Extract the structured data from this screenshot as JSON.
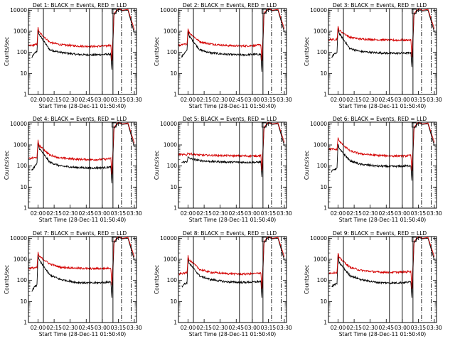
{
  "figure": {
    "start_label": "Start Time (28-Dec-11 01:50:40)",
    "y_label": "Counts/sec",
    "x_ticks": [
      "02:00",
      "02:15",
      "02:30",
      "02:45",
      "03:00",
      "03:15",
      "03:30"
    ],
    "y_ticks": [
      "1",
      "10",
      "100",
      "1000",
      "10000"
    ]
  },
  "chart_data": [
    {
      "type": "line",
      "title": "Det 1: BLACK = Events, RED = LLD",
      "xlabel": "Start Time (28-Dec-11 01:50:40)",
      "ylabel": "Counts/sec",
      "x_unit": "minutes after 01:50:40",
      "xlim": [
        0,
        101
      ],
      "ylim": [
        1,
        12000
      ],
      "y_scale": "log",
      "vlines": [
        14,
        57,
        69,
        79
      ],
      "dashed_vlines": [
        87,
        96
      ],
      "series": [
        {
          "name": "Events",
          "color": "#000000",
          "x": [
            3,
            5,
            8,
            9,
            10,
            20,
            30,
            45,
            60,
            72,
            77,
            78,
            80,
            84,
            88,
            93,
            99
          ],
          "values": [
            55,
            80,
            115,
            1300,
            700,
            130,
            100,
            80,
            75,
            80,
            82,
            15,
            6000,
            11000,
            9500,
            10000,
            800
          ]
        },
        {
          "name": "LLD",
          "color": "#d40000",
          "x": [
            0,
            8,
            9,
            10,
            20,
            30,
            45,
            60,
            72,
            77,
            78,
            80,
            84,
            88,
            93,
            99
          ],
          "values": [
            200,
            240,
            1500,
            900,
            300,
            230,
            200,
            190,
            200,
            220,
            40,
            7000,
            12000,
            10000,
            11000,
            1200
          ]
        }
      ]
    },
    {
      "type": "line",
      "title": "Det 2: BLACK = Events, RED = LLD",
      "xlabel": "Start Time (28-Dec-11 01:50:40)",
      "ylabel": "Counts/sec",
      "x_unit": "minutes after 01:50:40",
      "xlim": [
        0,
        101
      ],
      "ylim": [
        1,
        12000
      ],
      "y_scale": "log",
      "vlines": [
        14,
        57,
        69,
        79
      ],
      "dashed_vlines": [
        87,
        96
      ],
      "series": [
        {
          "name": "Events",
          "color": "#000000",
          "x": [
            3,
            5,
            8,
            9,
            10,
            20,
            30,
            45,
            60,
            72,
            77,
            78,
            80,
            84,
            88,
            93,
            99
          ],
          "values": [
            60,
            85,
            120,
            1100,
            600,
            130,
            95,
            80,
            75,
            80,
            80,
            12,
            6500,
            11000,
            9500,
            10000,
            900
          ]
        },
        {
          "name": "LLD",
          "color": "#d40000",
          "x": [
            0,
            8,
            9,
            10,
            20,
            30,
            45,
            60,
            72,
            77,
            78,
            80,
            84,
            88,
            93,
            99
          ],
          "values": [
            210,
            250,
            1400,
            850,
            320,
            250,
            210,
            200,
            210,
            230,
            40,
            7500,
            12000,
            10000,
            11000,
            1300
          ]
        }
      ]
    },
    {
      "type": "line",
      "title": "Det 3: BLACK = Events, RED = LLD",
      "xlabel": "Start Time (28-Dec-11 01:50:40)",
      "ylabel": "Counts/sec",
      "x_unit": "minutes after 01:50:40",
      "xlim": [
        0,
        101
      ],
      "ylim": [
        1,
        12000
      ],
      "y_scale": "log",
      "vlines": [
        14,
        57,
        69,
        79
      ],
      "dashed_vlines": [
        87,
        96
      ],
      "series": [
        {
          "name": "Events",
          "color": "#000000",
          "x": [
            3,
            5,
            8,
            9,
            10,
            20,
            30,
            45,
            60,
            72,
            77,
            78,
            80,
            84,
            88,
            93,
            99
          ],
          "values": [
            60,
            80,
            95,
            1500,
            800,
            150,
            110,
            95,
            90,
            92,
            95,
            20,
            6000,
            10500,
            9000,
            10000,
            900
          ]
        },
        {
          "name": "LLD",
          "color": "#d40000",
          "x": [
            0,
            8,
            9,
            10,
            20,
            30,
            45,
            60,
            72,
            77,
            78,
            80,
            84,
            88,
            93,
            99
          ],
          "values": [
            400,
            420,
            1600,
            1100,
            520,
            430,
            400,
            380,
            380,
            390,
            60,
            7000,
            11500,
            10000,
            11000,
            1300
          ]
        }
      ]
    },
    {
      "type": "line",
      "title": "Det 4: BLACK = Events, RED = LLD",
      "xlabel": "Start Time (28-Dec-11 01:50:40)",
      "ylabel": "Counts/sec",
      "x_unit": "minutes after 01:50:40",
      "xlim": [
        0,
        101
      ],
      "ylim": [
        1,
        12000
      ],
      "y_scale": "log",
      "vlines": [
        14,
        57,
        69,
        79
      ],
      "dashed_vlines": [
        87,
        96
      ],
      "series": [
        {
          "name": "Events",
          "color": "#000000",
          "x": [
            3,
            5,
            8,
            9,
            10,
            20,
            30,
            45,
            60,
            72,
            77,
            78,
            80,
            84,
            88,
            93,
            99
          ],
          "values": [
            60,
            85,
            130,
            1400,
            700,
            150,
            100,
            85,
            80,
            85,
            90,
            15,
            6000,
            11000,
            9500,
            10000,
            800
          ]
        },
        {
          "name": "LLD",
          "color": "#d40000",
          "x": [
            0,
            8,
            9,
            10,
            20,
            30,
            45,
            60,
            72,
            77,
            78,
            80,
            84,
            88,
            93,
            99
          ],
          "values": [
            220,
            260,
            1600,
            950,
            330,
            240,
            210,
            200,
            210,
            230,
            40,
            7000,
            12000,
            10000,
            11000,
            1200
          ]
        }
      ]
    },
    {
      "type": "line",
      "title": "Det 5: BLACK = Events, RED = LLD",
      "xlabel": "Start Time (28-Dec-11 01:50:40)",
      "ylabel": "Counts/sec",
      "x_unit": "minutes after 01:50:40",
      "xlim": [
        0,
        101
      ],
      "ylim": [
        1,
        12000
      ],
      "y_scale": "log",
      "vlines": [
        14,
        57,
        69,
        79
      ],
      "dashed_vlines": [
        87,
        96
      ],
      "series": [
        {
          "name": "Events",
          "color": "#000000",
          "x": [
            3,
            8,
            9,
            10,
            20,
            30,
            45,
            60,
            72,
            77,
            78,
            80,
            84,
            88,
            93,
            99
          ],
          "values": [
            150,
            160,
            260,
            230,
            180,
            165,
            155,
            150,
            150,
            155,
            30,
            6000,
            11000,
            9500,
            10000,
            900
          ]
        },
        {
          "name": "LLD",
          "color": "#d40000",
          "x": [
            0,
            8,
            9,
            10,
            20,
            30,
            45,
            60,
            72,
            77,
            78,
            80,
            84,
            88,
            93,
            99
          ],
          "values": [
            350,
            340,
            420,
            380,
            330,
            320,
            310,
            300,
            300,
            310,
            60,
            7000,
            12000,
            10000,
            11000,
            1300
          ]
        }
      ]
    },
    {
      "type": "line",
      "title": "Det 6: BLACK = Events, RED = LLD",
      "xlabel": "Start Time (28-Dec-11 01:50:40)",
      "ylabel": "Counts/sec",
      "x_unit": "minutes after 01:50:40",
      "xlim": [
        0,
        101
      ],
      "ylim": [
        1,
        12000
      ],
      "y_scale": "log",
      "vlines": [
        14,
        57,
        69,
        79
      ],
      "dashed_vlines": [
        87,
        96
      ],
      "series": [
        {
          "name": "Events",
          "color": "#000000",
          "x": [
            3,
            5,
            8,
            9,
            10,
            20,
            30,
            45,
            60,
            72,
            77,
            78,
            80,
            84,
            88,
            93,
            99
          ],
          "values": [
            55,
            70,
            75,
            1200,
            650,
            180,
            120,
            100,
            95,
            100,
            105,
            20,
            6000,
            11000,
            9500,
            10000,
            900
          ]
        },
        {
          "name": "LLD",
          "color": "#d40000",
          "x": [
            0,
            8,
            9,
            10,
            20,
            30,
            45,
            60,
            72,
            77,
            78,
            80,
            84,
            88,
            93,
            99
          ],
          "values": [
            650,
            600,
            2300,
            1500,
            520,
            380,
            320,
            300,
            300,
            320,
            60,
            7000,
            12000,
            10000,
            11000,
            1300
          ]
        }
      ]
    },
    {
      "type": "line",
      "title": "Det 7: BLACK = Events, RED = LLD",
      "xlabel": "Start Time (28-Dec-11 01:50:40)",
      "ylabel": "Counts/sec",
      "x_unit": "minutes after 01:50:40",
      "xlim": [
        0,
        101
      ],
      "ylim": [
        1,
        12000
      ],
      "y_scale": "log",
      "vlines": [
        14,
        57,
        69,
        79
      ],
      "dashed_vlines": [
        87,
        96
      ],
      "series": [
        {
          "name": "Events",
          "color": "#000000",
          "x": [
            3,
            5,
            8,
            9,
            10,
            20,
            30,
            45,
            60,
            72,
            77,
            78,
            80,
            84,
            88,
            93,
            99
          ],
          "values": [
            30,
            45,
            60,
            1800,
            900,
            180,
            110,
            80,
            75,
            80,
            85,
            15,
            6000,
            11000,
            9500,
            10000,
            900
          ]
        },
        {
          "name": "LLD",
          "color": "#d40000",
          "x": [
            0,
            8,
            9,
            10,
            20,
            30,
            45,
            60,
            72,
            77,
            78,
            80,
            84,
            88,
            93,
            99
          ],
          "values": [
            380,
            400,
            2100,
            1400,
            600,
            420,
            380,
            360,
            370,
            390,
            60,
            7000,
            12000,
            10000,
            11000,
            1300
          ]
        }
      ]
    },
    {
      "type": "line",
      "title": "Det 8: BLACK = Events, RED = LLD",
      "xlabel": "Start Time (28-Dec-11 01:50:40)",
      "ylabel": "Counts/sec",
      "x_unit": "minutes after 01:50:40",
      "xlim": [
        0,
        101
      ],
      "ylim": [
        1,
        12000
      ],
      "y_scale": "log",
      "vlines": [
        14,
        57,
        69,
        79
      ],
      "dashed_vlines": [
        87,
        96
      ],
      "series": [
        {
          "name": "Events",
          "color": "#000000",
          "x": [
            3,
            5,
            8,
            9,
            10,
            20,
            30,
            45,
            60,
            72,
            77,
            78,
            80,
            84,
            88,
            93,
            99
          ],
          "values": [
            50,
            65,
            75,
            1300,
            650,
            160,
            110,
            85,
            80,
            85,
            90,
            15,
            6000,
            11000,
            9500,
            10000,
            900
          ]
        },
        {
          "name": "LLD",
          "color": "#d40000",
          "x": [
            0,
            8,
            9,
            10,
            20,
            30,
            45,
            60,
            72,
            77,
            78,
            80,
            84,
            88,
            93,
            99
          ],
          "values": [
            200,
            230,
            1500,
            950,
            330,
            240,
            210,
            200,
            210,
            230,
            40,
            7000,
            12000,
            10000,
            11000,
            1300
          ]
        }
      ]
    },
    {
      "type": "line",
      "title": "Det 9: BLACK = Events, RED = LLD",
      "xlabel": "Start Time (28-Dec-11 01:50:40)",
      "ylabel": "Counts/sec",
      "x_unit": "minutes after 01:50:40",
      "xlim": [
        0,
        101
      ],
      "ylim": [
        1,
        12000
      ],
      "y_scale": "log",
      "vlines": [
        14,
        57,
        69,
        79
      ],
      "dashed_vlines": [
        87,
        96
      ],
      "series": [
        {
          "name": "Events",
          "color": "#000000",
          "x": [
            3,
            5,
            8,
            9,
            10,
            20,
            30,
            45,
            60,
            72,
            77,
            78,
            80,
            84,
            88,
            93,
            99
          ],
          "values": [
            50,
            60,
            70,
            1500,
            700,
            170,
            110,
            80,
            75,
            80,
            85,
            15,
            6000,
            11000,
            9500,
            10000,
            900
          ]
        },
        {
          "name": "LLD",
          "color": "#d40000",
          "x": [
            0,
            8,
            9,
            10,
            20,
            30,
            45,
            60,
            72,
            77,
            78,
            80,
            84,
            88,
            93,
            99
          ],
          "values": [
            220,
            240,
            2000,
            1200,
            420,
            300,
            250,
            240,
            250,
            270,
            40,
            7000,
            12000,
            10000,
            11000,
            1300
          ]
        }
      ]
    }
  ]
}
